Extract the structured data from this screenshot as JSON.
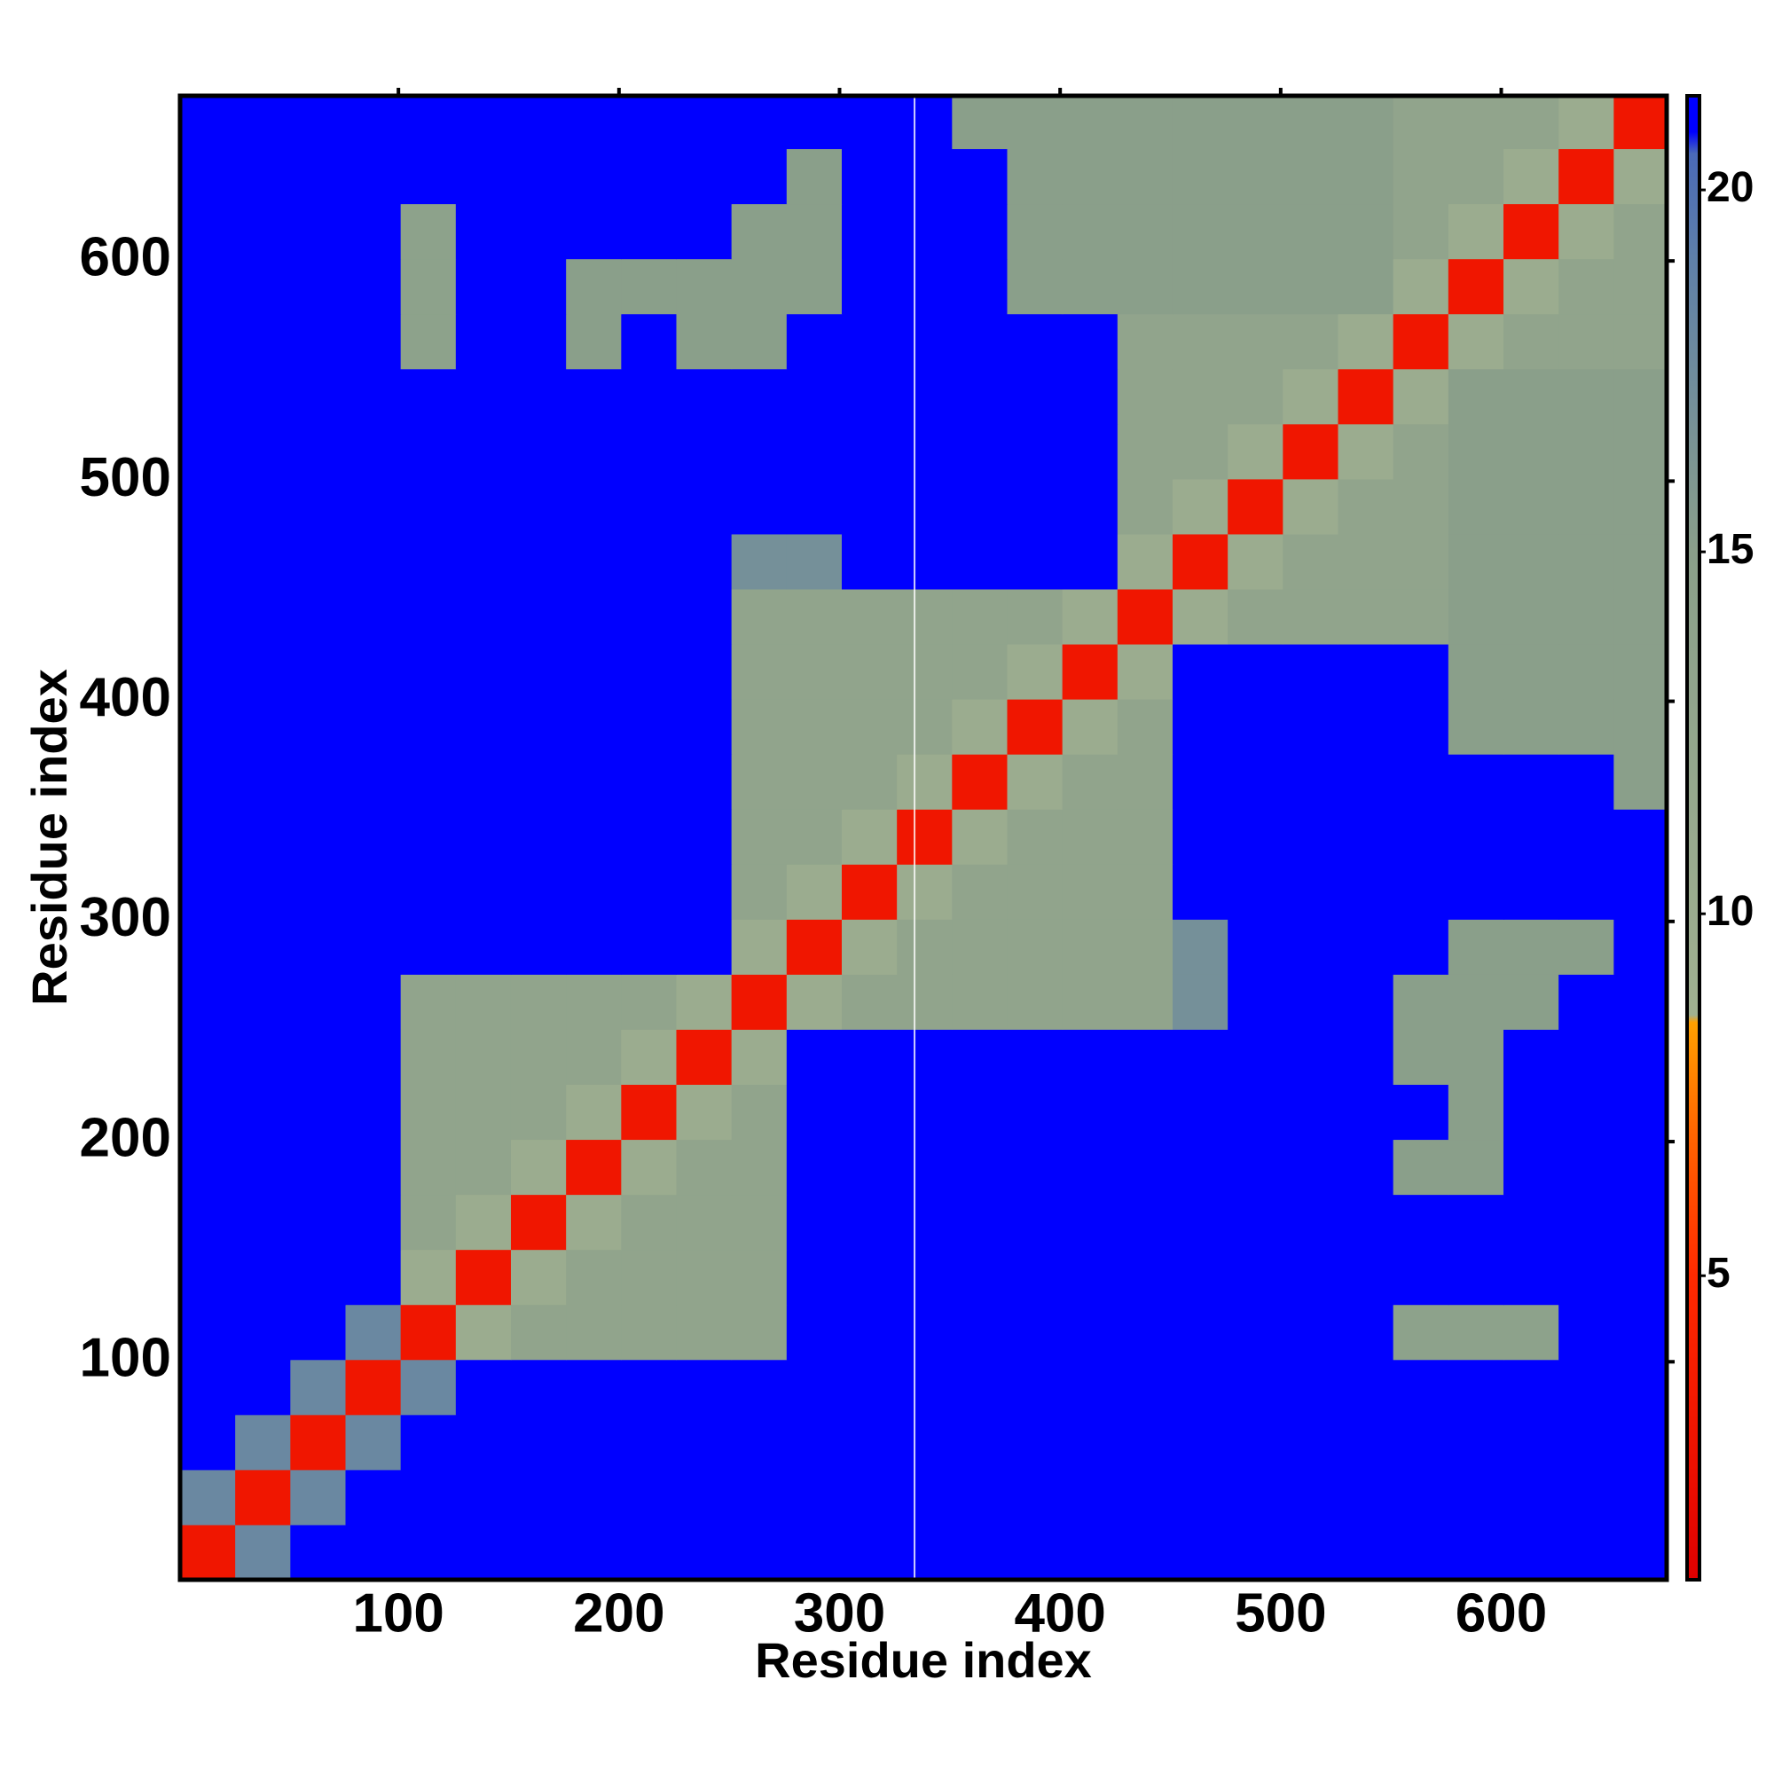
{
  "chart_data": {
    "type": "heatmap",
    "x_label": "Residue index",
    "y_label": "Residue index",
    "xlim": [
      1,
      675
    ],
    "ylim": [
      1,
      675
    ],
    "xticks": [
      100,
      200,
      300,
      400,
      500,
      600
    ],
    "yticks": [
      100,
      200,
      300,
      400,
      500,
      600
    ],
    "xbins": [
      1,
      26,
      51,
      76,
      101,
      126,
      151,
      176,
      201,
      226,
      251,
      276,
      301,
      326,
      351,
      376,
      401,
      426,
      451,
      476,
      501,
      526,
      551,
      576,
      601,
      626,
      651,
      675
    ],
    "ybins": [
      1,
      26,
      51,
      76,
      101,
      126,
      151,
      176,
      201,
      226,
      251,
      276,
      301,
      326,
      351,
      376,
      401,
      426,
      451,
      476,
      501,
      526,
      551,
      576,
      601,
      626,
      651,
      675
    ],
    "gap_x": 334,
    "clim": [
      0.8,
      21.3
    ],
    "colorbar_ticks": [
      5,
      10,
      15,
      20
    ],
    "colorscale": [
      [
        0.8,
        "#e00000"
      ],
      [
        5,
        "#ff2a00"
      ],
      [
        7,
        "#ff6600"
      ],
      [
        8.5,
        "#ffa000"
      ],
      [
        8.6,
        "#a0b090"
      ],
      [
        15,
        "#8a9f8a"
      ],
      [
        19,
        "#5f80a8"
      ],
      [
        20.5,
        "#4a6ab8"
      ],
      [
        20.8,
        "#0000ff"
      ],
      [
        21.3,
        "#0000ff"
      ]
    ],
    "z": [
      [
        3,
        18,
        21,
        21,
        21,
        21,
        21,
        21,
        21,
        21,
        21,
        21,
        21,
        21,
        21,
        21,
        21,
        21,
        21,
        21,
        21,
        21,
        21,
        21,
        21,
        21,
        21
      ],
      [
        18,
        3,
        18,
        21,
        21,
        21,
        21,
        21,
        21,
        21,
        21,
        21,
        21,
        21,
        21,
        21,
        21,
        21,
        21,
        21,
        21,
        21,
        21,
        21,
        21,
        21,
        21
      ],
      [
        21,
        18,
        3,
        18,
        21,
        21,
        21,
        21,
        21,
        21,
        21,
        21,
        21,
        21,
        21,
        21,
        21,
        21,
        21,
        21,
        21,
        21,
        21,
        21,
        21,
        21,
        21
      ],
      [
        21,
        21,
        18,
        3,
        18,
        21,
        21,
        21,
        21,
        21,
        21,
        21,
        21,
        21,
        21,
        21,
        21,
        21,
        21,
        21,
        21,
        21,
        21,
        21,
        21,
        21,
        21
      ],
      [
        21,
        21,
        21,
        18,
        3,
        10,
        13,
        13,
        13,
        13,
        13,
        21,
        21,
        21,
        21,
        21,
        21,
        21,
        21,
        21,
        21,
        21,
        14,
        14,
        14,
        21,
        21
      ],
      [
        21,
        21,
        21,
        21,
        10,
        3,
        10,
        13,
        13,
        13,
        13,
        21,
        21,
        21,
        21,
        21,
        21,
        21,
        21,
        21,
        21,
        21,
        21,
        21,
        21,
        21,
        21
      ],
      [
        21,
        21,
        21,
        21,
        13,
        10,
        3,
        10,
        13,
        13,
        13,
        21,
        21,
        21,
        21,
        21,
        21,
        21,
        21,
        21,
        21,
        21,
        21,
        21,
        21,
        21,
        21
      ],
      [
        21,
        21,
        21,
        21,
        13,
        13,
        10,
        3,
        10,
        13,
        13,
        21,
        21,
        21,
        21,
        21,
        21,
        21,
        21,
        21,
        21,
        21,
        15,
        15,
        21,
        21,
        21
      ],
      [
        21,
        21,
        21,
        21,
        13,
        13,
        13,
        10,
        3,
        10,
        13,
        21,
        21,
        21,
        21,
        21,
        21,
        21,
        21,
        21,
        21,
        21,
        21,
        15,
        21,
        21,
        21
      ],
      [
        21,
        21,
        21,
        21,
        13,
        13,
        13,
        13,
        10,
        3,
        10,
        21,
        21,
        21,
        21,
        21,
        21,
        21,
        21,
        21,
        21,
        21,
        15,
        15,
        21,
        21,
        21
      ],
      [
        21,
        21,
        21,
        21,
        13,
        13,
        13,
        13,
        13,
        10,
        3,
        10,
        13,
        13,
        13,
        13,
        13,
        13,
        17,
        21,
        21,
        21,
        15,
        15,
        15,
        21,
        21
      ],
      [
        21,
        21,
        21,
        21,
        21,
        21,
        21,
        21,
        21,
        21,
        10,
        3,
        10,
        13,
        13,
        13,
        13,
        13,
        17,
        21,
        21,
        21,
        21,
        15,
        15,
        15,
        21
      ],
      [
        21,
        21,
        21,
        21,
        21,
        21,
        21,
        21,
        21,
        21,
        13,
        10,
        3,
        10,
        13,
        13,
        13,
        13,
        21,
        21,
        21,
        21,
        21,
        21,
        21,
        21,
        21
      ],
      [
        21,
        21,
        21,
        21,
        21,
        21,
        21,
        21,
        21,
        21,
        13,
        13,
        10,
        3,
        10,
        13,
        13,
        13,
        21,
        21,
        21,
        21,
        21,
        21,
        21,
        21,
        21
      ],
      [
        21,
        21,
        21,
        21,
        21,
        21,
        21,
        21,
        21,
        21,
        13,
        13,
        13,
        10,
        3,
        10,
        13,
        13,
        21,
        21,
        21,
        21,
        21,
        21,
        21,
        21,
        15
      ],
      [
        21,
        21,
        21,
        21,
        21,
        21,
        21,
        21,
        21,
        21,
        13,
        13,
        13,
        13,
        10,
        3,
        10,
        13,
        21,
        21,
        21,
        21,
        21,
        15,
        15,
        15,
        15
      ],
      [
        21,
        21,
        21,
        21,
        21,
        21,
        21,
        21,
        21,
        21,
        13,
        13,
        13,
        13,
        13,
        10,
        3,
        10,
        21,
        21,
        21,
        21,
        21,
        15,
        15,
        15,
        15
      ],
      [
        21,
        21,
        21,
        21,
        21,
        21,
        21,
        21,
        21,
        21,
        13,
        13,
        13,
        13,
        13,
        13,
        10,
        3,
        10,
        13,
        13,
        13,
        13,
        15,
        15,
        15,
        15
      ],
      [
        21,
        21,
        21,
        21,
        21,
        21,
        21,
        21,
        21,
        21,
        17,
        17,
        21,
        21,
        21,
        21,
        21,
        10,
        3,
        10,
        13,
        13,
        13,
        15,
        15,
        15,
        15
      ],
      [
        21,
        21,
        21,
        21,
        21,
        21,
        21,
        21,
        21,
        21,
        21,
        21,
        21,
        21,
        21,
        21,
        21,
        13,
        10,
        3,
        10,
        13,
        13,
        15,
        15,
        15,
        15
      ],
      [
        21,
        21,
        21,
        21,
        21,
        21,
        21,
        21,
        21,
        21,
        21,
        21,
        21,
        21,
        21,
        21,
        21,
        13,
        13,
        10,
        3,
        10,
        13,
        15,
        15,
        15,
        15
      ],
      [
        21,
        21,
        21,
        21,
        21,
        21,
        21,
        21,
        21,
        21,
        21,
        21,
        21,
        21,
        21,
        21,
        21,
        13,
        13,
        13,
        10,
        3,
        10,
        15,
        15,
        15,
        15
      ],
      [
        21,
        21,
        21,
        21,
        14,
        21,
        21,
        15,
        21,
        15,
        15,
        21,
        21,
        21,
        21,
        21,
        21,
        13,
        13,
        13,
        13,
        10,
        3,
        10,
        13,
        13,
        13
      ],
      [
        21,
        21,
        21,
        21,
        14,
        21,
        21,
        15,
        15,
        15,
        15,
        15,
        21,
        21,
        21,
        15,
        15,
        15,
        15,
        15,
        15,
        15,
        10,
        3,
        10,
        13,
        13
      ],
      [
        21,
        21,
        21,
        21,
        14,
        21,
        21,
        21,
        21,
        21,
        15,
        15,
        21,
        21,
        21,
        15,
        15,
        15,
        15,
        15,
        15,
        15,
        13,
        10,
        3,
        10,
        13
      ],
      [
        21,
        21,
        21,
        21,
        21,
        21,
        21,
        21,
        21,
        21,
        21,
        15,
        21,
        21,
        21,
        15,
        15,
        15,
        15,
        15,
        15,
        15,
        13,
        13,
        10,
        3,
        10
      ],
      [
        21,
        21,
        21,
        21,
        21,
        21,
        21,
        21,
        21,
        21,
        21,
        21,
        21,
        21,
        15,
        15,
        15,
        15,
        15,
        15,
        15,
        15,
        13,
        13,
        13,
        10,
        3
      ]
    ]
  }
}
